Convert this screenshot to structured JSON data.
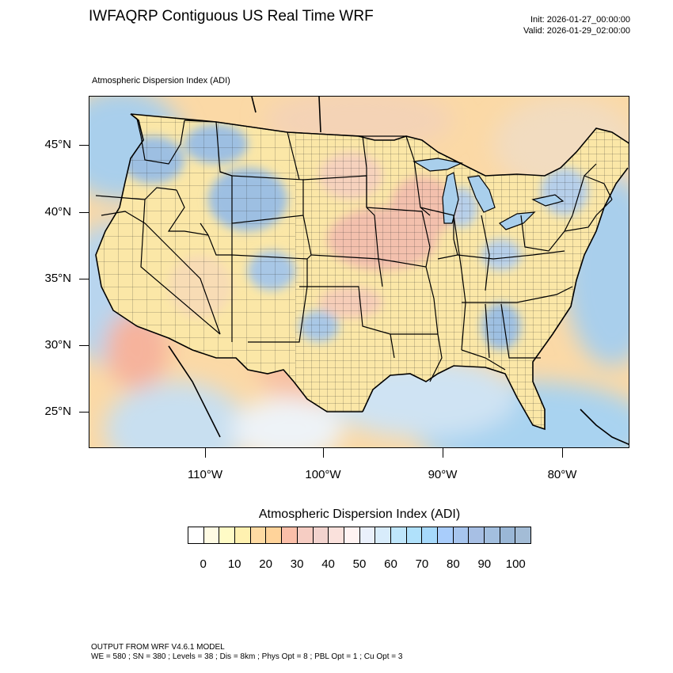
{
  "header": {
    "title": "IWFAQRP Contiguous US Real Time WRF",
    "init": "Init: 2026-01-27_00:00:00",
    "valid": "Valid: 2026-01-29_02:00:00"
  },
  "map": {
    "subtitle": "Atmospheric Dispersion Index   (ADI)",
    "region": "Contiguous United States",
    "lat_ticks": [
      "45°N",
      "40°N",
      "35°N",
      "30°N",
      "25°N"
    ],
    "lon_ticks": [
      "110°W",
      "100°W",
      "90°W",
      "80°W"
    ],
    "colors": {
      "land_low": "#fdf1a8",
      "land_mid": "#f6c9b0",
      "land_high": "#9dc0e2",
      "water": "#a9cfec",
      "boundary": "#000000"
    }
  },
  "legend": {
    "title": "Atmospheric Dispersion Index  (ADI)",
    "ticks": [
      "0",
      "10",
      "20",
      "30",
      "40",
      "50",
      "60",
      "70",
      "80",
      "90",
      "100"
    ],
    "colors": [
      "#ffffff",
      "#fffbe3",
      "#fffbc6",
      "#fff1b0",
      "#ffdba3",
      "#ffd39a",
      "#fbbfa9",
      "#f6cdc3",
      "#f2d3ce",
      "#fae1dc",
      "#fff3f2",
      "#eaf0fb",
      "#d8ecfb",
      "#bfe6fb",
      "#b0e1fb",
      "#a6d9fb",
      "#a9cdfb",
      "#a7c5ee",
      "#a7bfe4",
      "#a3bfdf",
      "#9ab7d6",
      "#a3bcd6"
    ]
  },
  "footer": {
    "line1": "OUTPUT FROM WRF V4.6.1 MODEL",
    "line2": "WE = 580 ; SN = 380 ; Levels = 38 ; Dis = 8km ; Phys Opt = 8 ; PBL Opt = 1 ; Cu Opt = 3"
  }
}
